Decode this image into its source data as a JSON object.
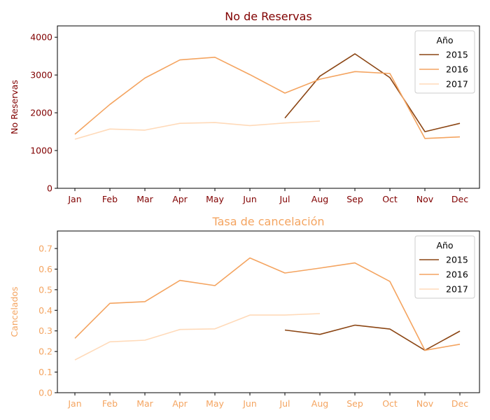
{
  "chart_data": [
    {
      "type": "line",
      "title": "No de Reservas",
      "xlabel": "",
      "ylabel": "No Reservas",
      "text_color": "#800000",
      "categories": [
        "Jan",
        "Feb",
        "Mar",
        "Apr",
        "May",
        "Jun",
        "Jul",
        "Aug",
        "Sep",
        "Oct",
        "Nov",
        "Dec"
      ],
      "ylim": [
        0,
        4300
      ],
      "yticks": [
        0,
        1000,
        2000,
        3000,
        4000
      ],
      "ytick_labels": [
        "0",
        "1000",
        "2000",
        "3000",
        "4000"
      ],
      "legend": {
        "title": "Año",
        "placement": "top-right"
      },
      "series": [
        {
          "name": "2015",
          "color": "#8b4513",
          "values": [
            null,
            null,
            null,
            null,
            null,
            null,
            1860,
            2970,
            3560,
            2930,
            1500,
            1720
          ]
        },
        {
          "name": "2016",
          "color": "#f4a460",
          "values": [
            1430,
            2220,
            2920,
            3400,
            3470,
            3010,
            2520,
            2890,
            3090,
            3040,
            1320,
            1360
          ]
        },
        {
          "name": "2017",
          "color": "#ffdab9",
          "values": [
            1300,
            1570,
            1540,
            1720,
            1740,
            1660,
            1730,
            1780,
            null,
            null,
            null,
            null
          ]
        }
      ]
    },
    {
      "type": "line",
      "title": "Tasa de cancelación",
      "xlabel": "",
      "ylabel": "Cancelados",
      "text_color": "#f4a460",
      "categories": [
        "Jan",
        "Feb",
        "Mar",
        "Apr",
        "May",
        "Jun",
        "Jul",
        "Aug",
        "Sep",
        "Oct",
        "Nov",
        "Dec"
      ],
      "ylim": [
        0,
        0.785
      ],
      "yticks": [
        0,
        0.1,
        0.2,
        0.3,
        0.4,
        0.5,
        0.6,
        0.7
      ],
      "ytick_labels": [
        "0.0",
        "0.1",
        "0.2",
        "0.3",
        "0.4",
        "0.5",
        "0.6",
        "0.7"
      ],
      "legend": {
        "title": "Año",
        "placement": "top-right"
      },
      "series": [
        {
          "name": "2015",
          "color": "#8b4513",
          "values": [
            null,
            null,
            null,
            null,
            null,
            null,
            0.304,
            0.283,
            0.328,
            0.309,
            0.206,
            0.299
          ]
        },
        {
          "name": "2016",
          "color": "#f4a460",
          "values": [
            0.264,
            0.434,
            0.442,
            0.545,
            0.52,
            0.654,
            0.581,
            0.605,
            0.63,
            0.54,
            0.206,
            0.235
          ]
        },
        {
          "name": "2017",
          "color": "#ffdab9",
          "values": [
            0.159,
            0.247,
            0.255,
            0.307,
            0.31,
            0.377,
            0.377,
            0.384,
            null,
            null,
            null,
            null
          ]
        }
      ]
    }
  ]
}
